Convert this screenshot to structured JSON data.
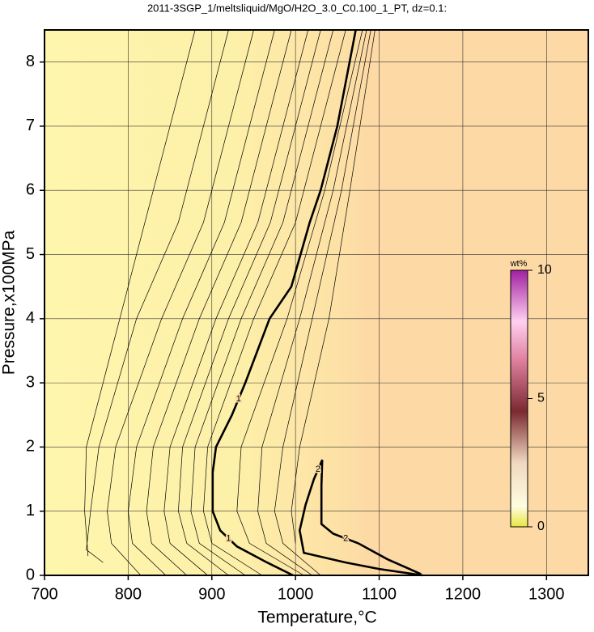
{
  "chart_data": {
    "type": "contour",
    "title": "2011-3SGP_1/meltsliquid/MgO/H2O_3.0_C0.100_1_PT, dz=0.1:",
    "xlabel": "Temperature,°C",
    "ylabel": "Pressure,x100MPa",
    "xlim": [
      700,
      1350
    ],
    "ylim": [
      0,
      8.5
    ],
    "xticks": [
      700,
      800,
      900,
      1000,
      1100,
      1200,
      1300
    ],
    "yticks": [
      0,
      1,
      2,
      3,
      4,
      5,
      6,
      7,
      8
    ],
    "grid": true,
    "colorbar": {
      "label": "wt%",
      "lim": [
        0,
        10
      ],
      "ticks": [
        0,
        5,
        10
      ]
    },
    "contours": [
      {
        "level": 0.1,
        "x": [
          880,
          830,
          790,
          750,
          748,
          752
        ],
        "y": [
          8.5,
          6,
          4,
          2,
          1,
          0.3
        ]
      },
      {
        "level": 0.2,
        "x": [
          920,
          860,
          810,
          765,
          755,
          750,
          770
        ],
        "y": [
          8.5,
          5.5,
          4,
          2,
          1,
          0.4,
          0.2
        ]
      },
      {
        "level": 0.3,
        "x": [
          950,
          890,
          840,
          785,
          775,
          780,
          815
        ],
        "y": [
          8.5,
          5.5,
          4,
          2,
          1,
          0.5,
          0
        ]
      },
      {
        "level": 0.4,
        "x": [
          975,
          915,
          865,
          810,
          800,
          805,
          845
        ],
        "y": [
          8.5,
          5.5,
          4,
          2,
          1,
          0.5,
          0
        ]
      },
      {
        "level": 0.5,
        "x": [
          995,
          935,
          885,
          830,
          822,
          828,
          870
        ],
        "y": [
          8.5,
          5.5,
          4,
          2,
          1,
          0.5,
          0
        ]
      },
      {
        "level": 0.6,
        "x": [
          1015,
          955,
          905,
          850,
          843,
          850,
          895
        ],
        "y": [
          8.5,
          5.5,
          4,
          2,
          1,
          0.5,
          0
        ]
      },
      {
        "level": 0.7,
        "x": [
          1030,
          970,
          920,
          865,
          860,
          870,
          920
        ],
        "y": [
          8.5,
          5.5,
          4,
          2,
          1,
          0.5,
          0
        ]
      },
      {
        "level": 0.8,
        "x": [
          1045,
          985,
          935,
          880,
          875,
          885,
          940
        ],
        "y": [
          8.5,
          5.5,
          4,
          2,
          1,
          0.5,
          0
        ]
      },
      {
        "level": 0.9,
        "x": [
          1060,
          1000,
          950,
          895,
          890,
          900,
          960
        ],
        "y": [
          8.5,
          5.5,
          4,
          2,
          1,
          0.5,
          0
        ]
      },
      {
        "level": 1,
        "x": [
          1072,
          1050,
          1030,
          1017,
          995,
          969,
          940,
          924,
          905,
          901,
          901,
          910,
          930,
          966,
          997
        ],
        "y": [
          8.5,
          7,
          6,
          5.5,
          4.5,
          4,
          3,
          2.5,
          2,
          1.6,
          1,
          0.7,
          0.45,
          0.2,
          0
        ]
      },
      {
        "level": 1.2,
        "x": [
          1080,
          1035,
          990,
          935,
          930,
          945,
          1010
        ],
        "y": [
          8.5,
          6,
          4,
          2,
          1,
          0.5,
          0
        ]
      },
      {
        "level": 1.4,
        "x": [
          1085,
          1045,
          1005,
          960,
          955,
          965,
          1020
        ],
        "y": [
          8.5,
          6,
          4,
          2,
          1,
          0.5,
          0
        ]
      },
      {
        "level": 1.6,
        "x": [
          1090,
          1055,
          1020,
          985,
          975,
          985,
          1030
        ],
        "y": [
          8.5,
          6,
          4,
          2,
          1,
          0.5,
          0
        ]
      },
      {
        "level": 1.8,
        "x": [
          1095,
          1065,
          1040,
          1005,
          995,
          1000
        ],
        "y": [
          8.5,
          6,
          4,
          2,
          1,
          0.5
        ]
      },
      {
        "level": 2,
        "x": [
          1152,
          1100,
          1060,
          1010,
          1005,
          1012,
          1022,
          1032,
          1031,
          1031,
          1045,
          1075,
          1110,
          1150
        ],
        "y": [
          0,
          0.1,
          0.2,
          0.35,
          0.7,
          1.1,
          1.5,
          1.8,
          1.4,
          0.8,
          0.65,
          0.5,
          0.25,
          0.02
        ]
      }
    ]
  }
}
